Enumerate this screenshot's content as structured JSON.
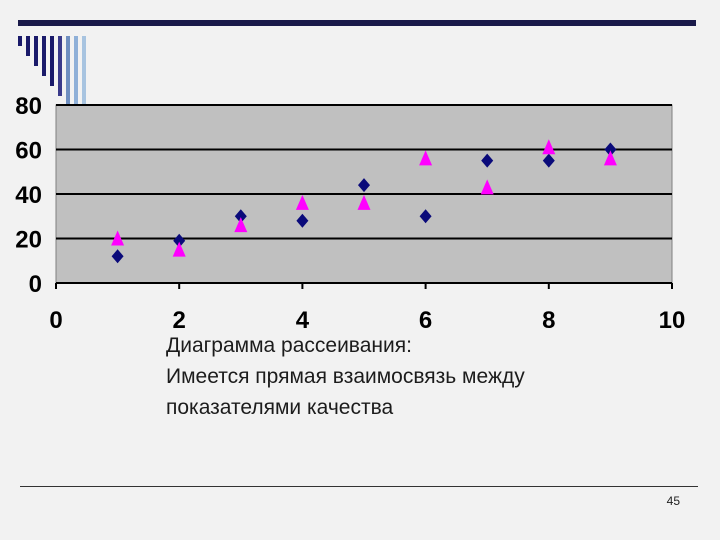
{
  "slide": {
    "caption_lines": [
      "Диаграмма рассеивания:",
      "Имеется прямая взаимосвязь между",
      "показателями качества"
    ],
    "page_number": "45"
  },
  "colors": {
    "background": "#f2f2f2",
    "plot_area": "#c0c0c0",
    "gridline": "#000000",
    "series_diamond": "#0a0a7a",
    "series_triangle": "#ff00ff",
    "rule": "#1a1a4a",
    "stripes": [
      "#1a1a6a",
      "#1a1a6a",
      "#1a1a6a",
      "#1a1a6a",
      "#1a1a6a",
      "#3a3a8a",
      "#6f8fc0",
      "#8fb0d8",
      "#a8c4e0"
    ]
  },
  "chart_data": {
    "type": "scatter",
    "title": "",
    "xlabel": "",
    "ylabel": "",
    "xlim": [
      0,
      10
    ],
    "ylim": [
      0,
      80
    ],
    "x_ticks": [
      "0",
      "2",
      "4",
      "6",
      "8",
      "10"
    ],
    "y_ticks": [
      "0",
      "20",
      "40",
      "60",
      "80"
    ],
    "grid": true,
    "legend": "none",
    "series": [
      {
        "marker": "diamond",
        "color": "#0a0a7a",
        "points": [
          [
            1,
            12
          ],
          [
            2,
            19
          ],
          [
            3,
            30
          ],
          [
            4,
            28
          ],
          [
            5,
            44
          ],
          [
            6,
            30
          ],
          [
            7,
            55
          ],
          [
            8,
            55
          ],
          [
            9,
            60
          ]
        ]
      },
      {
        "marker": "triangle",
        "color": "#ff00ff",
        "points": [
          [
            1,
            20
          ],
          [
            2,
            15
          ],
          [
            3,
            26
          ],
          [
            4,
            36
          ],
          [
            5,
            36
          ],
          [
            6,
            56
          ],
          [
            7,
            43
          ],
          [
            8,
            61
          ],
          [
            9,
            56
          ]
        ]
      }
    ]
  }
}
